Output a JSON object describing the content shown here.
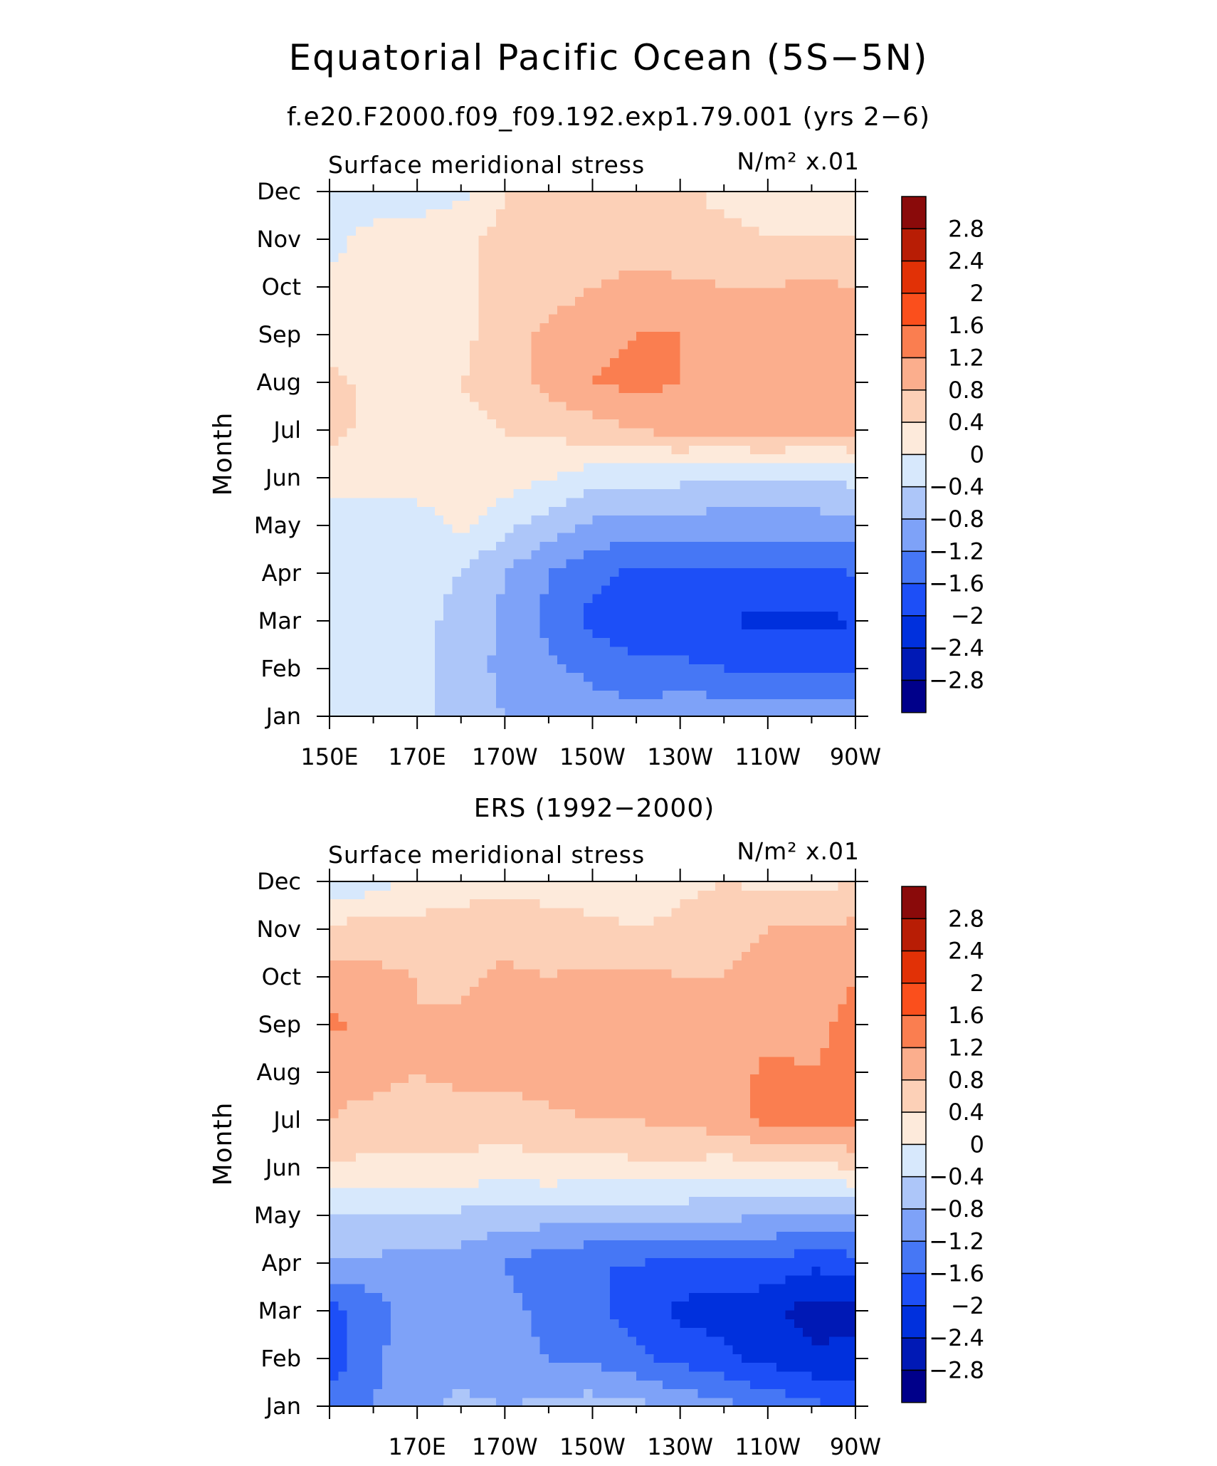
{
  "figure": {
    "title": "Equatorial Pacific Ocean (5S−5N)",
    "subtitle": "f.e20.F2000.f09_f09.192.exp1.79.001 (yrs 2−6)"
  },
  "palette": {
    "levels": [
      -2.8,
      -2.4,
      -2.0,
      -1.6,
      -1.2,
      -0.8,
      -0.4,
      0,
      0.4,
      0.8,
      1.2,
      1.6,
      2.0,
      2.4,
      2.8
    ],
    "colors": [
      "#00008a",
      "#0019b5",
      "#0030dd",
      "#1d4ff7",
      "#4677f5",
      "#7ea2f8",
      "#adc6f9",
      "#d7e8fc",
      "#fdeadb",
      "#fcd0b7",
      "#fbae8d",
      "#fa7e50",
      "#fb4f1c",
      "#e13106",
      "#b81d05",
      "#8a0a0a"
    ],
    "colorbar_labels": [
      "2.8",
      "2.4",
      "2",
      "1.6",
      "1.2",
      "0.8",
      "0.4",
      "0",
      "−0.4",
      "−0.8",
      "−1.2",
      "−1.6",
      "−2",
      "−2.4",
      "−2.8"
    ]
  },
  "chart_data": [
    {
      "type": "heatmap",
      "panel_title": "",
      "variable_label": "Surface meridional stress",
      "units_label": "N/m² x.01",
      "xlabel": "",
      "ylabel": "Month",
      "x_tick_labels": [
        "150E",
        "170E",
        "170W",
        "150W",
        "130W",
        "110W",
        "90W"
      ],
      "y_tick_labels": [
        "Jan",
        "Feb",
        "Mar",
        "Apr",
        "May",
        "Jun",
        "Jul",
        "Aug",
        "Sep",
        "Oct",
        "Nov",
        "Dec"
      ],
      "x_longitudes": [
        150,
        160,
        170,
        180,
        190,
        200,
        210,
        220,
        230,
        240,
        250,
        260,
        270
      ],
      "months": [
        "Jan",
        "Feb",
        "Mar",
        "Apr",
        "May",
        "Jun",
        "Jul",
        "Aug",
        "Sep",
        "Oct",
        "Nov",
        "Dec"
      ],
      "z": [
        [
          -0.4,
          -0.3,
          -0.3,
          -0.6,
          -0.8,
          -0.9,
          -1.0,
          -1.0,
          -0.9,
          -0.9,
          -0.9,
          -0.9,
          -0.9
        ],
        [
          -0.3,
          -0.3,
          -0.3,
          -0.6,
          -0.9,
          -1.1,
          -1.3,
          -1.5,
          -1.5,
          -1.6,
          -1.6,
          -1.7,
          -1.7
        ],
        [
          -0.3,
          -0.3,
          -0.3,
          -0.5,
          -0.9,
          -1.3,
          -1.7,
          -1.9,
          -1.9,
          -2.0,
          -2.1,
          -2.1,
          -2.0
        ],
        [
          -0.3,
          -0.3,
          -0.3,
          -0.4,
          -0.8,
          -1.2,
          -1.5,
          -1.7,
          -1.7,
          -1.7,
          -1.7,
          -1.7,
          -1.6
        ],
        [
          -0.2,
          -0.2,
          -0.2,
          0.1,
          -0.3,
          -0.6,
          -0.9,
          -1.0,
          -1.0,
          -1.0,
          -1.0,
          -1.0,
          -0.9
        ],
        [
          0.2,
          0.2,
          0.2,
          0.3,
          0.2,
          0.0,
          -0.2,
          -0.3,
          -0.3,
          -0.4,
          -0.4,
          -0.4,
          -0.3
        ],
        [
          0.5,
          0.3,
          0.3,
          0.3,
          0.4,
          0.5,
          0.6,
          0.8,
          0.9,
          0.9,
          1.0,
          0.9,
          0.9
        ],
        [
          0.5,
          0.3,
          0.3,
          0.4,
          0.6,
          0.9,
          1.2,
          1.3,
          1.2,
          1.1,
          1.1,
          1.1,
          1.0
        ],
        [
          0.2,
          0.2,
          0.3,
          0.3,
          0.6,
          0.9,
          1.1,
          1.2,
          1.2,
          1.1,
          1.1,
          1.1,
          1.0
        ],
        [
          0.2,
          0.2,
          0.2,
          0.3,
          0.5,
          0.6,
          0.8,
          0.9,
          0.9,
          0.8,
          0.8,
          0.9,
          0.8
        ],
        [
          -0.2,
          0.2,
          0.2,
          0.3,
          0.5,
          0.6,
          0.6,
          0.6,
          0.5,
          0.5,
          0.4,
          0.4,
          0.4
        ],
        [
          -0.3,
          -0.3,
          -0.2,
          -0.1,
          0.4,
          0.5,
          0.5,
          0.5,
          0.5,
          0.3,
          0.3,
          0.3,
          0.3
        ]
      ]
    },
    {
      "type": "heatmap",
      "panel_title": "ERS (1992−2000)",
      "variable_label": "Surface meridional stress",
      "units_label": "N/m² x.01",
      "xlabel": "",
      "ylabel": "Month",
      "x_tick_labels": [
        "170E",
        "170W",
        "150W",
        "130W",
        "110W",
        "90W"
      ],
      "y_tick_labels": [
        "Jan",
        "Feb",
        "Mar",
        "Apr",
        "May",
        "Jun",
        "Jul",
        "Aug",
        "Sep",
        "Oct",
        "Nov",
        "Dec"
      ],
      "x_longitudes": [
        150,
        160,
        170,
        180,
        190,
        200,
        210,
        220,
        230,
        240,
        250,
        260,
        270
      ],
      "months": [
        "Jan",
        "Feb",
        "Mar",
        "Apr",
        "May",
        "Jun",
        "Jul",
        "Aug",
        "Sep",
        "Oct",
        "Nov",
        "Dec"
      ],
      "z": [
        [
          -1.5,
          -1.2,
          -0.9,
          -0.7,
          -0.8,
          -0.7,
          -0.6,
          -0.7,
          -0.9,
          -1.1,
          -1.3,
          -1.5,
          -1.6
        ],
        [
          -1.8,
          -1.3,
          -0.9,
          -1.0,
          -1.1,
          -1.2,
          -1.3,
          -1.5,
          -1.7,
          -1.9,
          -2.1,
          -2.3,
          -2.3
        ],
        [
          -1.8,
          -1.4,
          -0.9,
          -0.9,
          -1.1,
          -1.3,
          -1.5,
          -1.8,
          -2.1,
          -2.2,
          -2.3,
          -2.6,
          -2.5
        ],
        [
          -0.9,
          -0.9,
          -0.9,
          -1.0,
          -1.2,
          -1.5,
          -1.6,
          -1.6,
          -1.7,
          -1.7,
          -1.7,
          -1.9,
          -1.8
        ],
        [
          -0.4,
          -0.4,
          -0.5,
          -0.5,
          -0.6,
          -0.6,
          -0.6,
          -0.7,
          -0.7,
          -0.7,
          -0.8,
          -0.8,
          -0.8
        ],
        [
          0.3,
          0.3,
          0.3,
          0.3,
          0.2,
          0.3,
          0.2,
          0.3,
          0.3,
          0.2,
          0.3,
          0.3,
          0.4
        ],
        [
          0.8,
          0.7,
          0.6,
          0.6,
          0.6,
          0.7,
          0.8,
          0.8,
          0.9,
          1.0,
          1.3,
          1.4,
          1.4
        ],
        [
          0.9,
          0.9,
          0.8,
          0.9,
          0.9,
          1.0,
          1.0,
          1.0,
          1.1,
          1.0,
          1.3,
          1.2,
          1.3
        ],
        [
          1.3,
          1.0,
          0.8,
          0.9,
          1.0,
          1.0,
          1.0,
          1.1,
          1.0,
          0.9,
          1.0,
          1.1,
          1.3
        ],
        [
          1.0,
          0.9,
          0.8,
          0.7,
          0.9,
          0.8,
          0.9,
          0.9,
          0.8,
          0.8,
          0.9,
          1.0,
          1.2
        ],
        [
          0.5,
          0.6,
          0.5,
          0.5,
          0.6,
          0.5,
          0.5,
          0.4,
          0.5,
          0.7,
          0.8,
          0.8,
          0.9
        ],
        [
          -0.3,
          -0.2,
          0.2,
          0.3,
          0.3,
          0.3,
          0.2,
          0.2,
          0.3,
          0.4,
          0.3,
          0.3,
          0.4
        ]
      ]
    }
  ]
}
